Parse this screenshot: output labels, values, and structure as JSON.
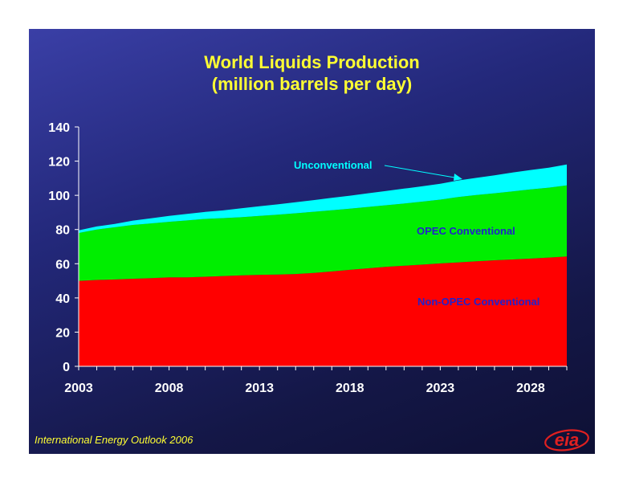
{
  "title_line1": "World Liquids Production",
  "title_line2": "(million barrels per day)",
  "source_note": "International Energy Outlook 2006",
  "logo_text": "eia",
  "colors": {
    "title": "#ffff33",
    "non_opec": "#ff0000",
    "opec": "#00ee00",
    "unconventional": "#00ffff",
    "axis": "#ffffff",
    "label_unconventional": "#00ffff",
    "label_opec": "#2222cc",
    "label_non_opec": "#2222cc",
    "logo": "#e02020"
  },
  "chart_data": {
    "type": "area",
    "stacked": true,
    "title": "World Liquids Production (million barrels per day)",
    "x": [
      2003,
      2004,
      2005,
      2006,
      2007,
      2008,
      2009,
      2010,
      2011,
      2012,
      2013,
      2014,
      2015,
      2016,
      2017,
      2018,
      2019,
      2020,
      2021,
      2022,
      2023,
      2024,
      2025,
      2026,
      2027,
      2028,
      2029,
      2030
    ],
    "xticks": [
      "2003",
      "2008",
      "2013",
      "2018",
      "2023",
      "2028"
    ],
    "ylim": [
      0,
      140
    ],
    "yticks": [
      "0",
      "20",
      "40",
      "60",
      "80",
      "100",
      "120",
      "140"
    ],
    "series": [
      {
        "name": "Non-OPEC Conventional",
        "values": [
          50.0,
          50.5,
          50.8,
          51.2,
          51.6,
          52.0,
          52.0,
          52.4,
          52.8,
          53.2,
          53.5,
          53.7,
          54.0,
          54.6,
          55.5,
          56.4,
          57.3,
          58.2,
          58.8,
          59.5,
          60.2,
          60.8,
          61.4,
          62.0,
          62.5,
          63.0,
          63.6,
          64.2
        ]
      },
      {
        "name": "OPEC Conventional",
        "values": [
          28.0,
          29.5,
          30.5,
          31.5,
          32.0,
          32.5,
          33.3,
          33.8,
          33.9,
          34.0,
          34.5,
          35.0,
          35.5,
          35.8,
          35.8,
          35.8,
          35.9,
          36.0,
          36.4,
          36.8,
          37.3,
          38.2,
          38.8,
          39.2,
          39.8,
          40.5,
          40.9,
          41.6
        ]
      },
      {
        "name": "Unconventional",
        "values": [
          1.5,
          1.8,
          2.0,
          2.5,
          3.0,
          3.5,
          3.8,
          4.1,
          4.5,
          5.2,
          5.6,
          6.0,
          6.5,
          6.8,
          7.2,
          7.6,
          8.0,
          8.3,
          8.7,
          9.0,
          9.3,
          9.7,
          10.0,
          10.5,
          11.0,
          11.3,
          11.7,
          12.2
        ]
      }
    ],
    "annotations": [
      {
        "text": "Unconventional"
      },
      {
        "text": "OPEC Conventional"
      },
      {
        "text": "Non-OPEC Conventional"
      }
    ],
    "legend": "none",
    "grid": false
  }
}
